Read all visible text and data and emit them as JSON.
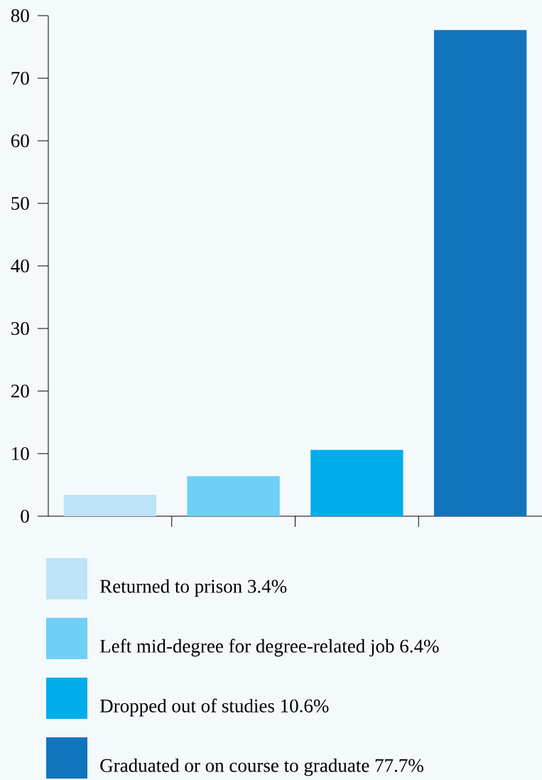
{
  "chart_data": {
    "type": "bar",
    "categories": [
      null,
      null,
      null,
      null
    ],
    "series": [
      {
        "name": "Returned to prison 3.4%",
        "color": "#bde3f7",
        "values": [
          3.4,
          null,
          null,
          null
        ]
      },
      {
        "name": "Left mid-degree for degree-related job 6.4%",
        "color": "#6fcff4",
        "values": [
          null,
          6.4,
          null,
          null
        ]
      },
      {
        "name": "Dropped out of studies 10.6%",
        "color": "#00adeb",
        "values": [
          null,
          null,
          10.6,
          null
        ]
      },
      {
        "name": "Graduated or on course to graduate 77.7%",
        "color": "#1175bd",
        "values": [
          null,
          null,
          null,
          77.7
        ]
      }
    ],
    "ylim": [
      0,
      80
    ],
    "yticks": [
      0,
      10,
      20,
      30,
      40,
      50,
      60,
      70,
      80
    ],
    "grid": false,
    "legend": "bottom"
  }
}
